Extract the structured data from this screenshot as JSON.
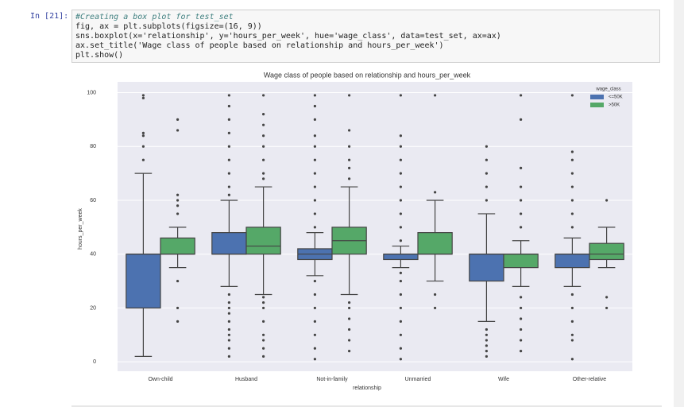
{
  "prompt": "In [21]:",
  "code": [
    "#Creating a box plot for test_set",
    "fig, ax = plt.subplots(figsize=(16, 9))",
    "sns.boxplot(x='relationship', y='hours_per_week', hue='wage_class', data=test_set, ax=ax)",
    "ax.set_title('Wage class of people based on relationship and hours_per_week')",
    "plt.show()"
  ],
  "chart_data": {
    "type": "boxplot",
    "title": "Wage class of people based on relationship and hours_per_week",
    "x_label": "relationship",
    "y_label": "hours_per_week",
    "legend_title": "wage_class",
    "legend": "upper right",
    "categories": [
      "Own-child",
      "Husband",
      "Not-in-family",
      "Unmarried",
      "Wife",
      "Other-relative"
    ],
    "ylim": [
      -3.5,
      104
    ],
    "yticks": [
      0,
      20,
      40,
      60,
      80,
      100
    ],
    "grid": true,
    "series": [
      {
        "name": "<=50K",
        "color": "#4c72b0",
        "values": [
          {
            "whislo": 2,
            "q1": 20,
            "med": 40,
            "q3": 40,
            "whishi": 70,
            "fliers": [
              75,
              80,
              84,
              85,
              98,
              99
            ]
          },
          {
            "whislo": 28,
            "q1": 40,
            "med": 40,
            "q3": 48,
            "whishi": 60,
            "fliers": [
              2,
              5,
              8,
              10,
              12,
              15,
              18,
              20,
              22,
              25,
              62,
              65,
              70,
              75,
              80,
              85,
              90,
              95,
              99
            ]
          },
          {
            "whislo": 32,
            "q1": 38,
            "med": 40,
            "q3": 42,
            "whishi": 48,
            "fliers": [
              1,
              5,
              10,
              15,
              20,
              25,
              30,
              50,
              55,
              60,
              65,
              70,
              75,
              80,
              84,
              90,
              95,
              99
            ]
          },
          {
            "whislo": 35,
            "q1": 38,
            "med": 40,
            "q3": 40,
            "whishi": 43,
            "fliers": [
              1,
              5,
              10,
              15,
              20,
              25,
              30,
              33,
              45,
              50,
              55,
              60,
              65,
              70,
              75,
              80,
              84,
              99
            ]
          },
          {
            "whislo": 15,
            "q1": 30,
            "med": 40,
            "q3": 40,
            "whishi": 55,
            "fliers": [
              2,
              4,
              6,
              8,
              10,
              12,
              60,
              65,
              70,
              75,
              80
            ]
          },
          {
            "whislo": 28,
            "q1": 35,
            "med": 40,
            "q3": 40,
            "whishi": 46,
            "fliers": [
              1,
              8,
              10,
              15,
              20,
              25,
              50,
              55,
              60,
              65,
              70,
              75,
              78,
              99
            ]
          }
        ]
      },
      {
        "name": ">50K",
        "color": "#55a868",
        "values": [
          {
            "whislo": 35,
            "q1": 40,
            "med": 40,
            "q3": 46,
            "whishi": 50,
            "fliers": [
              15,
              20,
              30,
              55,
              58,
              60,
              62,
              86,
              90
            ]
          },
          {
            "whislo": 25,
            "q1": 40,
            "med": 43,
            "q3": 50,
            "whishi": 65,
            "fliers": [
              2,
              5,
              8,
              10,
              15,
              20,
              22,
              24,
              68,
              70,
              75,
              80,
              84,
              88,
              92,
              99
            ]
          },
          {
            "whislo": 25,
            "q1": 40,
            "med": 45,
            "q3": 50,
            "whishi": 65,
            "fliers": [
              4,
              8,
              12,
              16,
              20,
              22,
              68,
              72,
              75,
              80,
              86,
              99
            ]
          },
          {
            "whislo": 30,
            "q1": 40,
            "med": 40,
            "q3": 48,
            "whishi": 60,
            "fliers": [
              20,
              25,
              63,
              99
            ]
          },
          {
            "whislo": 28,
            "q1": 35,
            "med": 40,
            "q3": 40,
            "whishi": 45,
            "fliers": [
              4,
              8,
              12,
              16,
              20,
              24,
              50,
              55,
              60,
              65,
              72,
              90,
              99
            ]
          },
          {
            "whislo": 35,
            "q1": 38,
            "med": 40,
            "q3": 44,
            "whishi": 50,
            "fliers": [
              20,
              24,
              60
            ]
          }
        ]
      }
    ]
  }
}
